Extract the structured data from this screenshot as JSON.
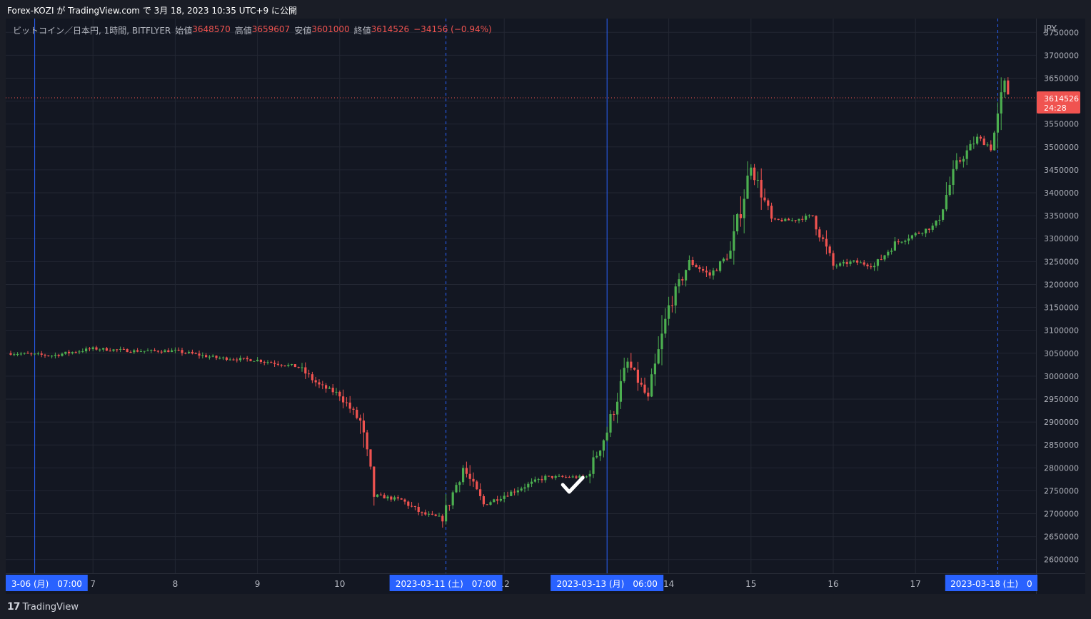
{
  "header": {
    "published_text": "Forex-KOZI が TradingView.com で 3月 18, 2023 10:35 UTC+9 に公開"
  },
  "legend": {
    "symbol": "ビットコイン／日本円, 1時間, BITFLYER",
    "open_label": "始値",
    "open_value": "3648570",
    "high_label": "高値",
    "high_value": "3659607",
    "low_label": "安値",
    "low_value": "3601000",
    "close_label": "終値",
    "close_value": "3614526",
    "change": "−34156 (−0.94%)"
  },
  "footer": {
    "logo": "17",
    "brand": "TradingView"
  },
  "colors": {
    "up": "#4caf50",
    "down": "#f05350",
    "grid": "#232733",
    "vline": "#2962ff",
    "date_label_bg": "#2962ff",
    "price_label_bg": "#f05350"
  },
  "chart_data": {
    "type": "candlestick",
    "symbol": "ビットコイン／日本円, 1時間, BITFLYER",
    "currency_label": "JPY",
    "y_range": [
      2570000,
      3780000
    ],
    "y_ticks": [
      "3750000",
      "3700000",
      "3650000",
      "3600000",
      "3550000",
      "3500000",
      "3450000",
      "3400000",
      "3350000",
      "3300000",
      "3250000",
      "3200000",
      "3150000",
      "3100000",
      "3050000",
      "3000000",
      "2950000",
      "2900000",
      "2850000",
      "2800000",
      "2750000",
      "2700000",
      "2650000",
      "2600000"
    ],
    "x_tick_labels": [
      {
        "label": "7",
        "time": "2023-03-07"
      },
      {
        "label": "8",
        "time": "2023-03-08"
      },
      {
        "label": "9",
        "time": "2023-03-09"
      },
      {
        "label": "10",
        "time": "2023-03-10"
      },
      {
        "label": "12",
        "time": "2023-03-12"
      },
      {
        "label": "14",
        "time": "2023-03-14"
      },
      {
        "label": "15",
        "time": "2023-03-15"
      },
      {
        "label": "16",
        "time": "2023-03-16"
      },
      {
        "label": "17",
        "time": "2023-03-17"
      }
    ],
    "x_date_labels": [
      {
        "label": "3-06 (月)　07:00",
        "time": "2023-03-06 07:00",
        "line": "solid"
      },
      {
        "label": "2023-03-11 (土)　07:00",
        "time": "2023-03-11 07:00",
        "line": "dashed"
      },
      {
        "label": "2023-03-13 (月)　06:00",
        "time": "2023-03-13 06:00",
        "line": "solid"
      },
      {
        "label": "2023-03-18 (土)　0",
        "time": "2023-03-18 00:00",
        "line": "dashed"
      }
    ],
    "last_price": {
      "value": "3614526",
      "countdown": "24:28"
    },
    "annotation": {
      "type": "checkmark",
      "time": "2023-03-12 20:00",
      "price": 2760000
    },
    "close_series": [
      {
        "t": "2023-03-06 00:00",
        "close": 3050000
      },
      {
        "t": "2023-03-06 12:00",
        "close": 3045000
      },
      {
        "t": "2023-03-07 00:00",
        "close": 3060000
      },
      {
        "t": "2023-03-07 12:00",
        "close": 3055000
      },
      {
        "t": "2023-03-08 00:00",
        "close": 3055000
      },
      {
        "t": "2023-03-08 12:00",
        "close": 3040000
      },
      {
        "t": "2023-03-09 00:00",
        "close": 3035000
      },
      {
        "t": "2023-03-09 12:00",
        "close": 3020000
      },
      {
        "t": "2023-03-09 18:00",
        "close": 2980000
      },
      {
        "t": "2023-03-10 00:00",
        "close": 2960000
      },
      {
        "t": "2023-03-10 06:00",
        "close": 2900000
      },
      {
        "t": "2023-03-10 10:00",
        "close": 2740000
      },
      {
        "t": "2023-03-10 18:00",
        "close": 2730000
      },
      {
        "t": "2023-03-11 00:00",
        "close": 2700000
      },
      {
        "t": "2023-03-11 06:00",
        "close": 2690000
      },
      {
        "t": "2023-03-11 12:00",
        "close": 2800000
      },
      {
        "t": "2023-03-11 18:00",
        "close": 2720000
      },
      {
        "t": "2023-03-12 00:00",
        "close": 2740000
      },
      {
        "t": "2023-03-12 12:00",
        "close": 2780000
      },
      {
        "t": "2023-03-13 00:00",
        "close": 2780000
      },
      {
        "t": "2023-03-13 06:00",
        "close": 2880000
      },
      {
        "t": "2023-03-13 12:00",
        "close": 3030000
      },
      {
        "t": "2023-03-13 18:00",
        "close": 2950000
      },
      {
        "t": "2023-03-14 00:00",
        "close": 3150000
      },
      {
        "t": "2023-03-14 06:00",
        "close": 3250000
      },
      {
        "t": "2023-03-14 12:00",
        "close": 3220000
      },
      {
        "t": "2023-03-14 18:00",
        "close": 3270000
      },
      {
        "t": "2023-03-15 00:00",
        "close": 3460000
      },
      {
        "t": "2023-03-15 06:00",
        "close": 3340000
      },
      {
        "t": "2023-03-15 12:00",
        "close": 3340000
      },
      {
        "t": "2023-03-15 18:00",
        "close": 3350000
      },
      {
        "t": "2023-03-16 00:00",
        "close": 3240000
      },
      {
        "t": "2023-03-16 06:00",
        "close": 3250000
      },
      {
        "t": "2023-03-16 12:00",
        "close": 3240000
      },
      {
        "t": "2023-03-16 18:00",
        "close": 3290000
      },
      {
        "t": "2023-03-17 00:00",
        "close": 3310000
      },
      {
        "t": "2023-03-17 06:00",
        "close": 3330000
      },
      {
        "t": "2023-03-17 12:00",
        "close": 3460000
      },
      {
        "t": "2023-03-17 18:00",
        "close": 3520000
      },
      {
        "t": "2023-03-17 22:00",
        "close": 3500000
      },
      {
        "t": "2023-03-18 00:00",
        "close": 3560000
      },
      {
        "t": "2023-03-18 02:00",
        "close": 3640000
      },
      {
        "t": "2023-03-18 03:00",
        "close": 3614526
      }
    ]
  }
}
